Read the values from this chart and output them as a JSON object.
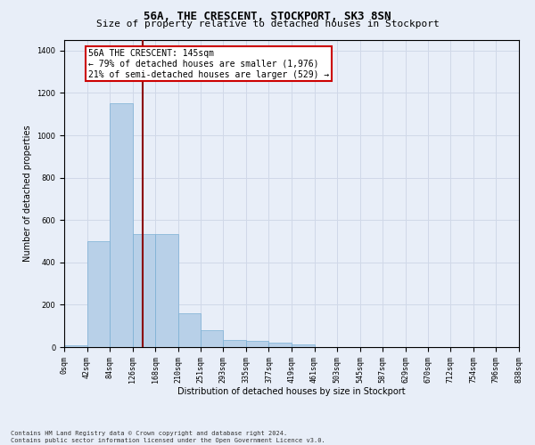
{
  "title": "56A, THE CRESCENT, STOCKPORT, SK3 8SN",
  "subtitle": "Size of property relative to detached houses in Stockport",
  "xlabel": "Distribution of detached houses by size in Stockport",
  "ylabel": "Number of detached properties",
  "footer_line1": "Contains HM Land Registry data © Crown copyright and database right 2024.",
  "footer_line2": "Contains public sector information licensed under the Open Government Licence v3.0.",
  "bin_labels": [
    "0sqm",
    "42sqm",
    "84sqm",
    "126sqm",
    "168sqm",
    "210sqm",
    "251sqm",
    "293sqm",
    "335sqm",
    "377sqm",
    "419sqm",
    "461sqm",
    "503sqm",
    "545sqm",
    "587sqm",
    "629sqm",
    "670sqm",
    "712sqm",
    "754sqm",
    "796sqm",
    "838sqm"
  ],
  "bar_values": [
    10,
    500,
    1150,
    535,
    535,
    160,
    80,
    35,
    28,
    20,
    14,
    0,
    0,
    0,
    0,
    0,
    0,
    0,
    0,
    0
  ],
  "bar_color": "#b8d0e8",
  "bar_edge_color": "#7aafd4",
  "vline_color": "#8b0000",
  "ylim": [
    0,
    1450
  ],
  "annotation_text": "56A THE CRESCENT: 145sqm\n← 79% of detached houses are smaller (1,976)\n21% of semi-detached houses are larger (529) →",
  "annotation_box_color": "#ffffff",
  "annotation_box_edge": "#cc0000",
  "bin_edges": [
    0,
    42,
    84,
    126,
    168,
    210,
    251,
    293,
    335,
    377,
    419,
    461,
    503,
    545,
    587,
    629,
    670,
    712,
    754,
    796,
    838
  ],
  "property_sqm": 145,
  "grid_color": "#d0d8e8",
  "bg_color": "#e8eef8",
  "title_fontsize": 9,
  "subtitle_fontsize": 8,
  "axis_label_fontsize": 7,
  "tick_fontsize": 6,
  "annotation_fontsize": 7,
  "footer_fontsize": 5
}
